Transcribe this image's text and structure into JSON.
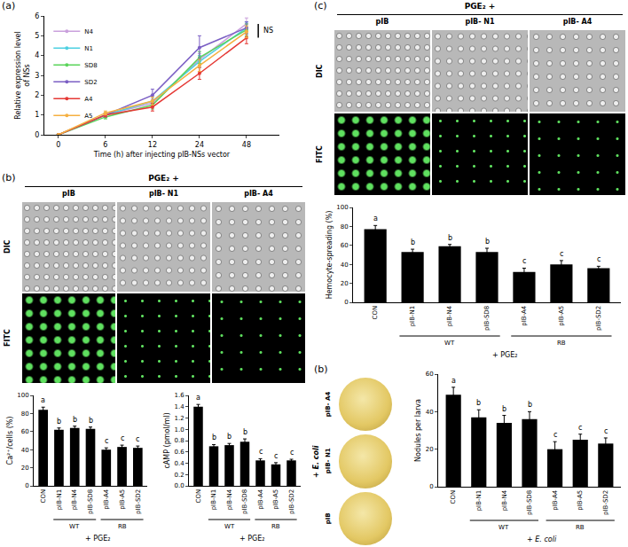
{
  "chart_data": [
    {
      "type": "line",
      "panel_label": "(a)",
      "x_title": "Time (h) after injecting pIB-NSs vector",
      "y_title": "Relative expression level of NSs",
      "categories": [
        "0",
        "6",
        "12",
        "24",
        "48"
      ],
      "series": [
        {
          "name": "N4",
          "color": "#c9a0dc",
          "values": [
            0,
            1.0,
            1.6,
            3.8,
            5.6
          ],
          "errors": [
            0,
            0.1,
            0.2,
            0.3,
            0.3
          ]
        },
        {
          "name": "N1",
          "color": "#4dd0e1",
          "values": [
            0,
            1.0,
            1.7,
            3.7,
            5.4
          ],
          "errors": [
            0,
            0.1,
            0.2,
            0.3,
            0.3
          ]
        },
        {
          "name": "SD8",
          "color": "#5ad45a",
          "values": [
            0,
            0.9,
            1.5,
            3.9,
            5.3
          ],
          "errors": [
            0,
            0.1,
            0.2,
            0.3,
            0.3
          ]
        },
        {
          "name": "SD2",
          "color": "#7b5fc4",
          "values": [
            0,
            1.0,
            2.0,
            4.4,
            5.4
          ],
          "errors": [
            0,
            0.1,
            0.3,
            0.6,
            0.3
          ]
        },
        {
          "name": "A4",
          "color": "#e53935",
          "values": [
            0,
            1.0,
            1.4,
            3.1,
            4.9
          ],
          "errors": [
            0,
            0.1,
            0.2,
            0.3,
            0.3
          ]
        },
        {
          "name": "A5",
          "color": "#f5b041",
          "values": [
            0,
            1.1,
            1.7,
            3.5,
            5.2
          ],
          "errors": [
            0,
            0.1,
            0.2,
            0.3,
            0.3
          ]
        }
      ],
      "ylim": [
        0,
        6
      ],
      "yticks": [
        0,
        1,
        2,
        3,
        4,
        5,
        6
      ],
      "legend": "top-left",
      "marker": "circle",
      "annotation": "NS",
      "grid": false
    },
    {
      "type": "bar",
      "y_title": "Ca²⁺/cells (%)",
      "categories": [
        "CON",
        "pIB-N1",
        "pIB-N4",
        "pIB-SD8",
        "pIB-A4",
        "pIB-A5",
        "pIB-SD2"
      ],
      "values": [
        84,
        62,
        64,
        63,
        40,
        43,
        42
      ],
      "errors": [
        3,
        2,
        2,
        2,
        2,
        2,
        2
      ],
      "letters": [
        "a",
        "b",
        "b",
        "b",
        "c",
        "c",
        "c"
      ],
      "groups": [
        {
          "label": "WT",
          "from": "pIB-N1",
          "to": "pIB-SD8"
        },
        {
          "label": "RB",
          "from": "pIB-A4",
          "to": "pIB-SD2"
        }
      ],
      "treatment": "+ PGE₂",
      "color": "#000000",
      "ylim": [
        0,
        100
      ],
      "yticks": [
        0,
        20,
        40,
        60,
        80,
        100
      ],
      "grid": false
    },
    {
      "type": "bar",
      "y_title": "cAMP (pmol/ml)",
      "categories": [
        "CON",
        "pIB-N1",
        "pIB-N4",
        "pIB-SD8",
        "pIB-A4",
        "pIB-A5",
        "pIB-SD2"
      ],
      "values": [
        1.4,
        0.7,
        0.72,
        0.78,
        0.45,
        0.38,
        0.45
      ],
      "errors": [
        0.04,
        0.03,
        0.03,
        0.05,
        0.03,
        0.03,
        0.02
      ],
      "letters": [
        "a",
        "b",
        "b",
        "b",
        "c",
        "c",
        "c"
      ],
      "groups": [
        {
          "label": "WT",
          "from": "pIB-N1",
          "to": "pIB-SD8"
        },
        {
          "label": "RB",
          "from": "pIB-A4",
          "to": "pIB-SD2"
        }
      ],
      "treatment": "+ PGE₂",
      "color": "#000000",
      "ylim": [
        0,
        1.6
      ],
      "yticks": [
        {
          "value": 0,
          "label": "0.0"
        },
        0.2,
        0.4,
        0.6,
        0.8,
        {
          "value": 1,
          "label": "1.0"
        },
        1.2,
        1.4,
        1.6
      ],
      "grid": false
    },
    {
      "type": "bar",
      "y_title": "Hemocyte-spreading (%)",
      "categories": [
        "CON",
        "pIB-N1",
        "pIB-N4",
        "pIB-SD8",
        "pIB-A4",
        "pIB-A5",
        "pIB-SD2"
      ],
      "values": [
        77,
        53,
        59,
        53,
        32,
        40,
        36
      ],
      "errors": [
        4,
        3,
        2,
        4,
        4,
        4,
        2
      ],
      "letters": [
        "a",
        "b",
        "b",
        "b",
        "c",
        "c",
        "c"
      ],
      "groups": [
        {
          "label": "WT",
          "from": "pIB-N1",
          "to": "pIB-SD8"
        },
        {
          "label": "RB",
          "from": "pIB-A4",
          "to": "pIB-SD2"
        }
      ],
      "treatment": "+ PGE₂",
      "color": "#000000",
      "ylim": [
        0,
        100
      ],
      "yticks": [
        0,
        20,
        40,
        60,
        80,
        100
      ],
      "grid": false
    },
    {
      "type": "bar",
      "y_title": "Nodules per larva",
      "categories": [
        "CON",
        "pIB-N1",
        "pIB-N4",
        "pIB-SD8",
        "pIB-A4",
        "pIB-A5",
        "pIB-SD2"
      ],
      "values": [
        49,
        37,
        34,
        36,
        20,
        25,
        23
      ],
      "errors": [
        4,
        4,
        4,
        4,
        4,
        3,
        3
      ],
      "letters": [
        "a",
        "b",
        "b",
        "b",
        "c",
        "c",
        "c"
      ],
      "groups": [
        {
          "label": "WT",
          "from": "pIB-N1",
          "to": "pIB-SD8"
        },
        {
          "label": "RB",
          "from": "pIB-A4",
          "to": "pIB-SD2"
        }
      ],
      "treatment": "+ E. coli",
      "color": "#000000",
      "ylim": [
        0,
        60
      ],
      "yticks": [
        0,
        20,
        40,
        60
      ],
      "grid": false
    }
  ],
  "image_panels": [
    {
      "panel_label": "(b)",
      "header": "PGE₂ +",
      "columns": [
        "pIB",
        "pIB- N1",
        "pIB- A4"
      ],
      "rows": [
        "DIC",
        "FITC"
      ]
    },
    {
      "panel_label": "(c)",
      "header": "PGE₂ +",
      "columns": [
        "pIB",
        "pIB- N1",
        "pIB- A4"
      ],
      "rows": [
        "DIC",
        "FITC"
      ]
    },
    {
      "panel_label": "(b)",
      "header": "+ E. coli",
      "rows": [
        "pIB- A4",
        "pIB- N1",
        "pIB"
      ]
    }
  ]
}
